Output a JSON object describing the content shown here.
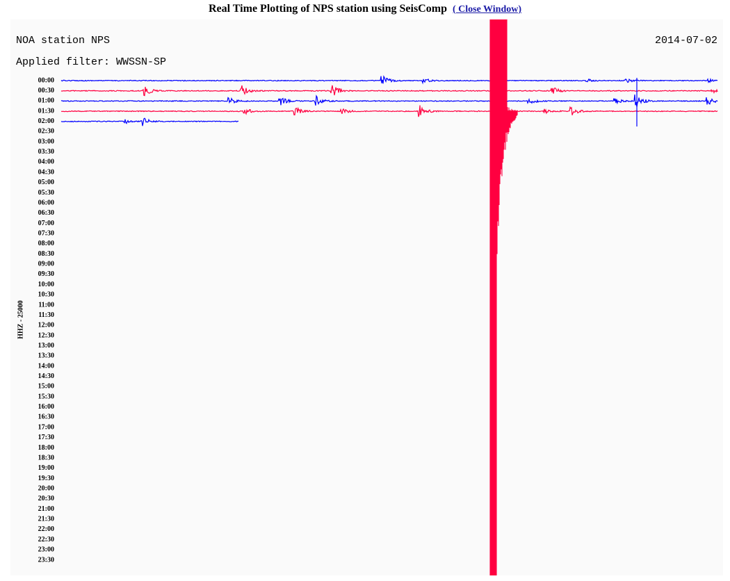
{
  "header": {
    "title": "Real Time Plotting of NPS station using SeisComp",
    "link": "( Close Window)"
  },
  "plot": {
    "station": "NOA station NPS",
    "date": "2014-07-02",
    "filter": "Applied filter: WWSSN-SP",
    "axis_label": "HHZ - 25000",
    "time_labels": [
      "00:00",
      "00:30",
      "01:00",
      "01:30",
      "02:00",
      "02:30",
      "03:00",
      "03:30",
      "04:00",
      "04:30",
      "05:00",
      "05:30",
      "06:00",
      "06:30",
      "07:00",
      "07:30",
      "08:00",
      "08:30",
      "09:00",
      "09:30",
      "10:00",
      "10:30",
      "11:00",
      "11:30",
      "12:00",
      "12:30",
      "13:00",
      "13:30",
      "14:00",
      "14:30",
      "15:00",
      "15:30",
      "16:00",
      "16:30",
      "17:00",
      "17:30",
      "18:00",
      "18:30",
      "19:00",
      "19:30",
      "20:00",
      "20:30",
      "21:00",
      "21:30",
      "22:00",
      "22:30",
      "23:00",
      "23:30"
    ]
  }
}
